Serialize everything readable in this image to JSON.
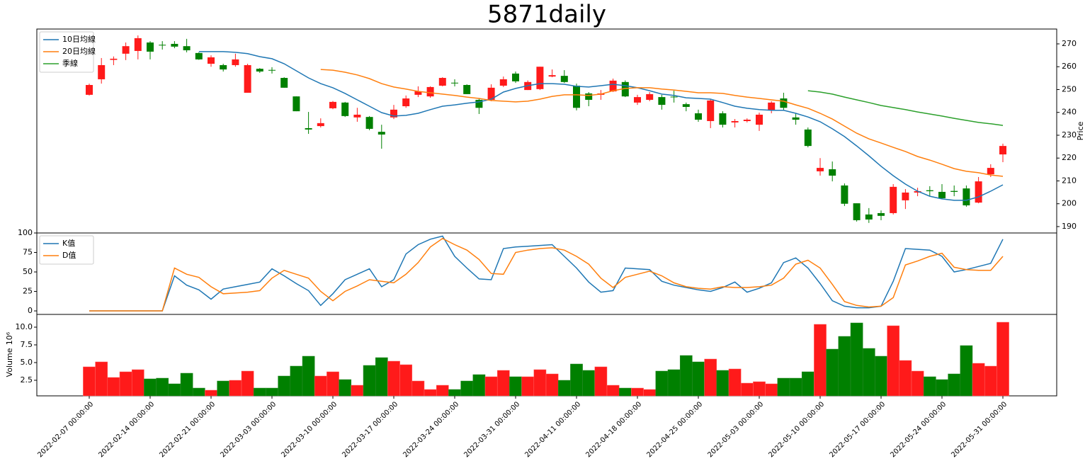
{
  "chart_data": {
    "type": "candlestick",
    "title": "5871daily",
    "categories": [
      "2022-02-07 00:00:00",
      null,
      null,
      null,
      null,
      "2022-02-14 00:00:00",
      null,
      null,
      null,
      null,
      "2022-02-21 00:00:00",
      null,
      null,
      null,
      null,
      "2022-03-03 00:00:00",
      null,
      null,
      null,
      null,
      "2022-03-10 00:00:00",
      null,
      null,
      null,
      null,
      "2022-03-17 00:00:00",
      null,
      null,
      null,
      null,
      "2022-03-24 00:00:00",
      null,
      null,
      null,
      null,
      "2022-03-31 00:00:00",
      null,
      null,
      null,
      null,
      "2022-04-11 00:00:00",
      null,
      null,
      null,
      null,
      "2022-04-18 00:00:00",
      null,
      null,
      null,
      null,
      "2022-04-25 00:00:00",
      null,
      null,
      null,
      null,
      "2022-05-03 00:00:00",
      null,
      null,
      null,
      null,
      "2022-05-10 00:00:00",
      null,
      null,
      null,
      null,
      "2022-05-17 00:00:00",
      null,
      null,
      null,
      null,
      "2022-05-24 00:00:00",
      null,
      null,
      null,
      null,
      "2022-05-31 00:00:00"
    ],
    "open": [
      247.7,
      254.5,
      263,
      265.7,
      266.9,
      270.6,
      269.6,
      270,
      269,
      266,
      261.3,
      260.7,
      260.7,
      248.6,
      259.1,
      258.6,
      255.1,
      247,
      233.1,
      234,
      241.8,
      244.3,
      237.8,
      238,
      231.5,
      237.8,
      242.7,
      247.7,
      247,
      251.7,
      253,
      252,
      245.5,
      245.5,
      251.7,
      257,
      249.8,
      250.2,
      255.7,
      256,
      251.7,
      248.3,
      247.7,
      249.2,
      253.3,
      244.3,
      245.5,
      246.7,
      246.9,
      243.6,
      239.6,
      236.2,
      239.6,
      235.6,
      236.2,
      234.6,
      240.9,
      246.1,
      237.8,
      232.5,
      214.2,
      215.1,
      208,
      200.2,
      195.3,
      195.9,
      195.9,
      201.5,
      204.9,
      205.9,
      205.2,
      205.6,
      206.7,
      200.5,
      212.9,
      221.6
    ],
    "high": [
      252.6,
      263.8,
      264.5,
      270.6,
      273.7,
      271.2,
      271.2,
      271.2,
      272.2,
      266.3,
      265,
      261.3,
      265.7,
      261.3,
      259.4,
      259.8,
      255.4,
      247,
      240.2,
      237.4,
      245,
      244.6,
      242,
      238.4,
      234.6,
      243.3,
      247.4,
      251.4,
      251.4,
      255.4,
      254.5,
      252.3,
      246.1,
      252.3,
      255.7,
      257.9,
      254,
      260,
      258.8,
      258.5,
      252.6,
      248.9,
      249.8,
      254.8,
      254,
      247.7,
      248.9,
      247.7,
      249.5,
      244.3,
      241.2,
      245.8,
      240.5,
      237.1,
      237.4,
      239.9,
      244.9,
      248.6,
      239.6,
      233.4,
      220,
      218.5,
      208.9,
      200.2,
      198.1,
      197.1,
      208.6,
      206.4,
      207,
      207.7,
      208.6,
      208,
      208,
      211.7,
      217.3,
      226.3
    ],
    "low": [
      247.4,
      252.6,
      260.7,
      262.9,
      263.2,
      263.2,
      267.5,
      268.1,
      266.3,
      263,
      260,
      257.9,
      260,
      248.6,
      257.3,
      257,
      250.8,
      240.5,
      230.6,
      233.4,
      241.4,
      238,
      235.9,
      232.2,
      224.1,
      237.1,
      242,
      246.7,
      246.4,
      251.4,
      251.4,
      248,
      239.3,
      244.9,
      251.1,
      252.9,
      249.8,
      249.8,
      255.4,
      252.9,
      240.9,
      242.7,
      245.5,
      248.9,
      246.7,
      243.3,
      244.9,
      241.2,
      244.3,
      240.5,
      235.9,
      233.1,
      233.4,
      233.4,
      235.6,
      231.9,
      239.6,
      240.9,
      234.6,
      224.7,
      212.3,
      209.8,
      199,
      192.2,
      191.6,
      192.8,
      195.3,
      197.7,
      203.3,
      203.3,
      202.1,
      203.3,
      198.7,
      200.2,
      211.7,
      218.2
    ],
    "close": [
      252,
      260.7,
      263.5,
      269,
      272.5,
      266.6,
      269.4,
      268.8,
      267.2,
      263.2,
      264.1,
      258.8,
      263.2,
      260.7,
      257.9,
      258.3,
      250.8,
      240.5,
      232.5,
      235.3,
      244.6,
      238.4,
      239,
      232.8,
      230.3,
      241.2,
      246.1,
      249.2,
      251.1,
      255.1,
      252.7,
      248,
      242,
      250.8,
      254.5,
      253.6,
      253.3,
      260,
      256.3,
      253.3,
      242,
      245.5,
      248.3,
      253.9,
      247,
      246.7,
      248,
      243.3,
      246.6,
      242.4,
      236.8,
      245.2,
      234.6,
      236.2,
      236.8,
      239,
      244.3,
      242,
      236.8,
      225.3,
      215.7,
      212.3,
      200,
      192.8,
      193.1,
      194.7,
      207.4,
      204.9,
      205.5,
      205.5,
      202.4,
      205.2,
      199.3,
      209.8,
      215.7,
      225.3
    ],
    "up_color": "#ff1a1a",
    "down_color": "#008000",
    "ylabel": "Price",
    "ylim": [
      187.2,
      276.5
    ],
    "yticks": [
      190,
      200,
      210,
      220,
      230,
      240,
      250,
      260,
      270
    ],
    "legend": "upper left",
    "series": [
      {
        "name": "10日均線",
        "color": "#1f77b4",
        "values": [
          null,
          null,
          null,
          null,
          null,
          null,
          null,
          null,
          null,
          266.6,
          266.6,
          266.6,
          266.3,
          265.7,
          264.4,
          263.5,
          261.3,
          258.2,
          255.1,
          252.6,
          250.8,
          248.3,
          245.5,
          242.7,
          239.9,
          238.4,
          238.7,
          239.6,
          241.2,
          242.7,
          243.3,
          244,
          244.6,
          245.8,
          248.9,
          250.5,
          251.7,
          252.6,
          252.6,
          252.3,
          251.4,
          251.1,
          251.7,
          252.3,
          251.7,
          250.8,
          249.5,
          248,
          247.4,
          246.4,
          246.1,
          245.8,
          244.3,
          242.7,
          241.8,
          241.2,
          240.9,
          240.9,
          239.6,
          238,
          235.9,
          232.8,
          229.4,
          225.3,
          221,
          216.4,
          212.3,
          208.6,
          205.5,
          203.3,
          202.1,
          201.5,
          201.5,
          203,
          205.5,
          208.3
        ]
      },
      {
        "name": "20日均線",
        "color": "#ff7f0e",
        "values": [
          null,
          null,
          null,
          null,
          null,
          null,
          null,
          null,
          null,
          null,
          null,
          null,
          null,
          null,
          null,
          null,
          null,
          null,
          null,
          258.8,
          258.5,
          257.6,
          256.4,
          254.8,
          252.6,
          251.1,
          250.2,
          249.2,
          248.6,
          248,
          247.4,
          246.7,
          246.1,
          245.2,
          244.9,
          244.6,
          244.9,
          245.8,
          247,
          247.7,
          247.7,
          247.4,
          248,
          249.5,
          250.5,
          250.8,
          250.8,
          250.2,
          249.8,
          249.2,
          248.6,
          248.6,
          248.3,
          247.4,
          246.7,
          246.1,
          245.5,
          244.9,
          243.3,
          241.8,
          239.6,
          237.1,
          234,
          230.9,
          228.4,
          226.6,
          224.7,
          222.9,
          220.7,
          219.1,
          217.3,
          215.4,
          214.2,
          213.6,
          212.6,
          212
        ]
      },
      {
        "name": "季線",
        "color": "#2ca02c",
        "values": [
          null,
          null,
          null,
          null,
          null,
          null,
          null,
          null,
          null,
          null,
          null,
          null,
          null,
          null,
          null,
          null,
          null,
          null,
          null,
          null,
          null,
          null,
          null,
          null,
          null,
          null,
          null,
          null,
          null,
          null,
          null,
          null,
          null,
          null,
          null,
          null,
          null,
          null,
          null,
          null,
          null,
          null,
          null,
          null,
          null,
          null,
          null,
          null,
          null,
          null,
          null,
          null,
          null,
          null,
          null,
          null,
          null,
          null,
          null,
          249.5,
          248.9,
          248,
          246.7,
          245.5,
          244.3,
          243,
          242.1,
          241.2,
          240.2,
          239.3,
          238.4,
          237.4,
          236.5,
          235.6,
          235,
          234.3
        ]
      }
    ],
    "kd": {
      "ylim": [
        -4.5,
        100
      ],
      "yticks": [
        0,
        25,
        50,
        75,
        100
      ],
      "legend": "upper left",
      "series": [
        {
          "name": "K值",
          "color": "#1f77b4",
          "values": [
            0,
            0,
            0,
            0,
            0,
            0,
            0,
            45,
            33,
            27,
            15,
            28,
            31,
            34,
            37,
            54,
            45,
            35,
            26,
            7,
            22,
            40,
            47,
            54,
            31,
            40,
            73,
            85,
            92,
            96,
            70,
            55,
            41,
            40,
            80,
            82,
            83,
            84,
            85,
            70,
            55,
            37,
            24,
            26,
            55,
            54,
            53,
            38,
            33,
            30,
            27,
            25,
            30,
            37,
            24,
            29,
            36,
            62,
            68,
            55,
            35,
            13,
            6,
            4,
            4,
            6,
            38,
            80,
            79,
            78,
            70,
            50,
            53,
            57,
            61,
            92
          ]
        },
        {
          "name": "D值",
          "color": "#ff7f0e",
          "values": [
            0,
            0,
            0,
            0,
            0,
            0,
            0,
            55,
            47,
            43,
            31,
            22,
            23,
            24,
            26,
            42,
            52,
            47,
            42,
            25,
            13,
            25,
            32,
            40,
            38,
            36,
            47,
            62,
            82,
            93,
            85,
            78,
            66,
            48,
            47,
            75,
            78,
            80,
            81,
            78,
            70,
            60,
            42,
            30,
            43,
            47,
            51,
            45,
            36,
            31,
            29,
            28,
            31,
            30,
            30,
            31,
            33,
            42,
            60,
            65,
            55,
            34,
            12,
            7,
            5,
            6,
            17,
            59,
            64,
            70,
            74,
            56,
            53,
            52,
            52,
            70
          ]
        }
      ]
    },
    "volume": {
      "ylabel": "Volume",
      "scale_label": "10⁶",
      "ylim": [
        0.3,
        11.8
      ],
      "yticks": [
        2.5,
        {
          "value": 5,
          "label": "5.0"
        },
        7.5,
        {
          "value": 10,
          "label": "10.0"
        }
      ],
      "values": [
        4.4,
        5.1,
        2.9,
        3.7,
        4.0,
        2.7,
        2.8,
        2.0,
        3.5,
        1.4,
        1.1,
        2.4,
        2.5,
        3.8,
        1.4,
        1.4,
        3.1,
        4.5,
        5.9,
        3.1,
        3.7,
        2.6,
        1.8,
        4.6,
        5.7,
        5.2,
        4.7,
        2.4,
        1.2,
        1.8,
        1.2,
        2.4,
        3.3,
        3.0,
        3.9,
        3.0,
        3.0,
        4.0,
        3.4,
        2.5,
        4.8,
        3.9,
        4.4,
        1.8,
        1.4,
        1.4,
        1.2,
        3.8,
        4.0,
        6.0,
        5.1,
        5.5,
        3.9,
        4.1,
        2.1,
        2.3,
        2.0,
        2.8,
        2.8,
        3.7,
        10.4,
        6.9,
        8.7,
        10.6,
        7.0,
        5.9,
        10.2,
        5.3,
        3.8,
        3.0,
        2.6,
        3.4,
        7.4,
        4.9,
        4.5,
        10.7
      ]
    }
  }
}
